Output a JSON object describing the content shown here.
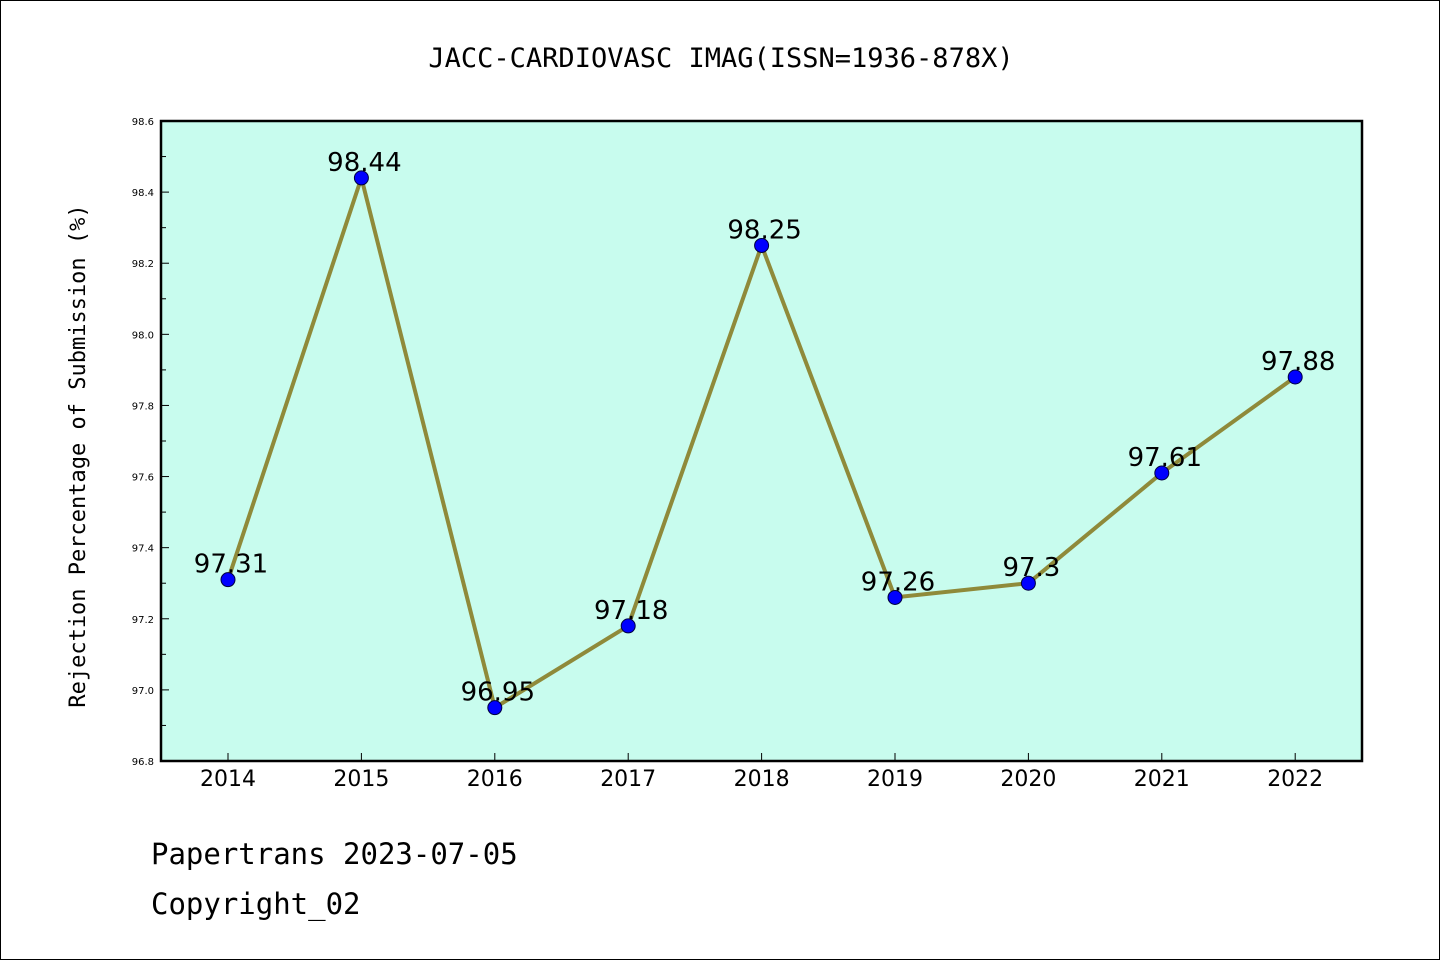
{
  "chart_data": {
    "type": "line",
    "title": "JACC-CARDIOVASC IMAG(ISSN=1936-878X)",
    "xlabel": "",
    "ylabel": "Rejection Percentage of Submission (%)",
    "categories": [
      "2014",
      "2015",
      "2016",
      "2017",
      "2018",
      "2019",
      "2020",
      "2021",
      "2022"
    ],
    "series": [
      {
        "values": [
          97.31,
          98.44,
          96.95,
          97.18,
          98.25,
          97.26,
          97.3,
          97.61,
          97.88
        ]
      }
    ],
    "data_labels": [
      "97.31",
      "98.44",
      "96.95",
      "97.18",
      "98.25",
      "97.26",
      "97.3",
      "97.61",
      "97.88"
    ],
    "ylim": [
      96.8,
      98.6
    ],
    "yticks": [
      "96.8",
      "97.0",
      "97.2",
      "97.4",
      "97.6",
      "97.8",
      "98.0",
      "98.2",
      "98.4",
      "98.6"
    ],
    "grid": false,
    "legend": "none",
    "colors": {
      "plot_background": "#c8fcee",
      "line": "#8f8a3a",
      "marker": "#0000ff"
    }
  },
  "footer": {
    "line1": "Papertrans 2023-07-05",
    "line2": "Copyright_02"
  }
}
